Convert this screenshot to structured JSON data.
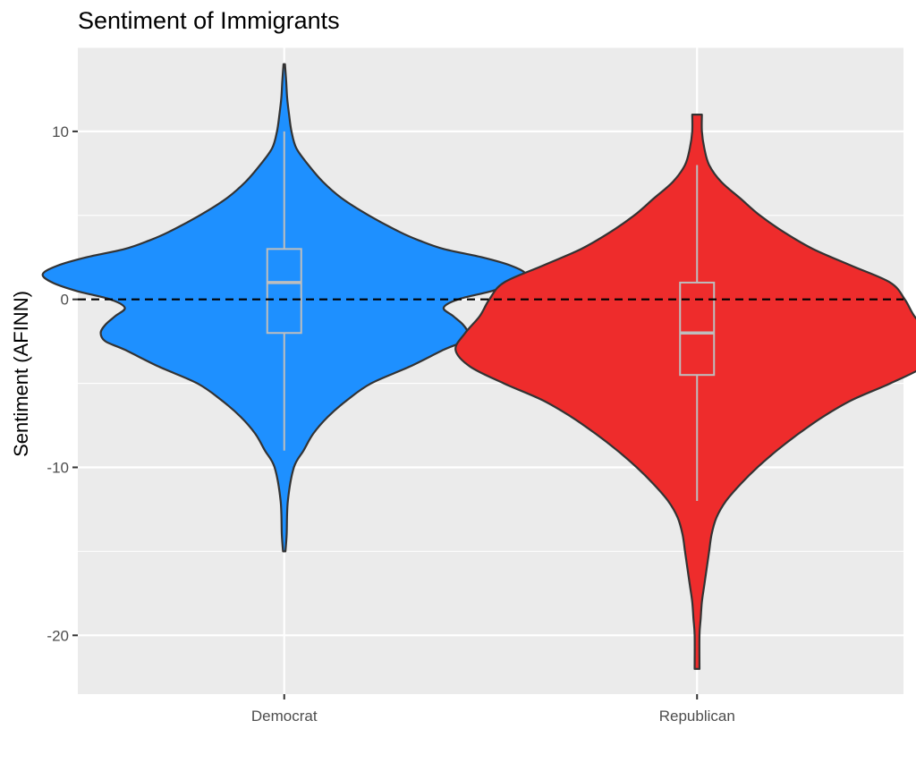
{
  "chart_data": {
    "type": "violin",
    "title": "Sentiment of Immigrants",
    "xlabel": "",
    "ylabel": "Sentiment (AFINN)",
    "categories": [
      "Democrat",
      "Republican"
    ],
    "ylim": [
      -23.5,
      15
    ],
    "yticks": [
      -20,
      -10,
      0,
      10
    ],
    "grid": true,
    "reference_line": {
      "y": 0,
      "style": "dashed",
      "color": "#000000"
    },
    "series": [
      {
        "name": "Democrat",
        "color": "#1E90FF",
        "y_min": -15,
        "y_max": 14,
        "boxplot": {
          "whisker_low": -9,
          "q1": -2,
          "median": 1,
          "q3": 3,
          "whisker_high": 10
        },
        "density_profile": [
          [
            -15,
            0.005
          ],
          [
            -14,
            0.01
          ],
          [
            -12,
            0.015
          ],
          [
            -10,
            0.04
          ],
          [
            -9,
            0.08
          ],
          [
            -8,
            0.12
          ],
          [
            -7,
            0.18
          ],
          [
            -6,
            0.26
          ],
          [
            -5,
            0.36
          ],
          [
            -4,
            0.52
          ],
          [
            -3,
            0.66
          ],
          [
            -2.5,
            0.74
          ],
          [
            -2,
            0.76
          ],
          [
            -1.5,
            0.74
          ],
          [
            -1,
            0.7
          ],
          [
            -0.5,
            0.66
          ],
          [
            0,
            0.72
          ],
          [
            0.5,
            0.86
          ],
          [
            1,
            0.96
          ],
          [
            1.5,
            1.0
          ],
          [
            2,
            0.94
          ],
          [
            2.5,
            0.82
          ],
          [
            3,
            0.66
          ],
          [
            3.5,
            0.56
          ],
          [
            4,
            0.48
          ],
          [
            5,
            0.35
          ],
          [
            6,
            0.24
          ],
          [
            7,
            0.16
          ],
          [
            8,
            0.1
          ],
          [
            9,
            0.05
          ],
          [
            10,
            0.03
          ],
          [
            11,
            0.02
          ],
          [
            12,
            0.012
          ],
          [
            13,
            0.008
          ],
          [
            14,
            0.003
          ]
        ]
      },
      {
        "name": "Republican",
        "color": "#EE2C2C",
        "y_min": -22,
        "y_max": 11,
        "boxplot": {
          "whisker_low": -12,
          "q1": -4.5,
          "median": -2,
          "q3": 1,
          "whisker_high": 8
        },
        "density_profile": [
          [
            -22,
            0.01
          ],
          [
            -20,
            0.01
          ],
          [
            -19,
            0.015
          ],
          [
            -18,
            0.02
          ],
          [
            -17,
            0.03
          ],
          [
            -16,
            0.04
          ],
          [
            -15,
            0.05
          ],
          [
            -14,
            0.06
          ],
          [
            -13,
            0.08
          ],
          [
            -12,
            0.12
          ],
          [
            -11,
            0.18
          ],
          [
            -10,
            0.25
          ],
          [
            -9,
            0.33
          ],
          [
            -8,
            0.42
          ],
          [
            -7,
            0.52
          ],
          [
            -6,
            0.64
          ],
          [
            -5,
            0.8
          ],
          [
            -4,
            0.94
          ],
          [
            -3,
            1.0
          ],
          [
            -2,
            0.96
          ],
          [
            -1,
            0.9
          ],
          [
            0,
            0.86
          ],
          [
            1,
            0.8
          ],
          [
            2,
            0.64
          ],
          [
            3,
            0.48
          ],
          [
            4,
            0.36
          ],
          [
            5,
            0.26
          ],
          [
            6,
            0.18
          ],
          [
            7,
            0.1
          ],
          [
            8,
            0.05
          ],
          [
            9,
            0.03
          ],
          [
            10,
            0.02
          ],
          [
            11,
            0.02
          ]
        ]
      }
    ]
  }
}
